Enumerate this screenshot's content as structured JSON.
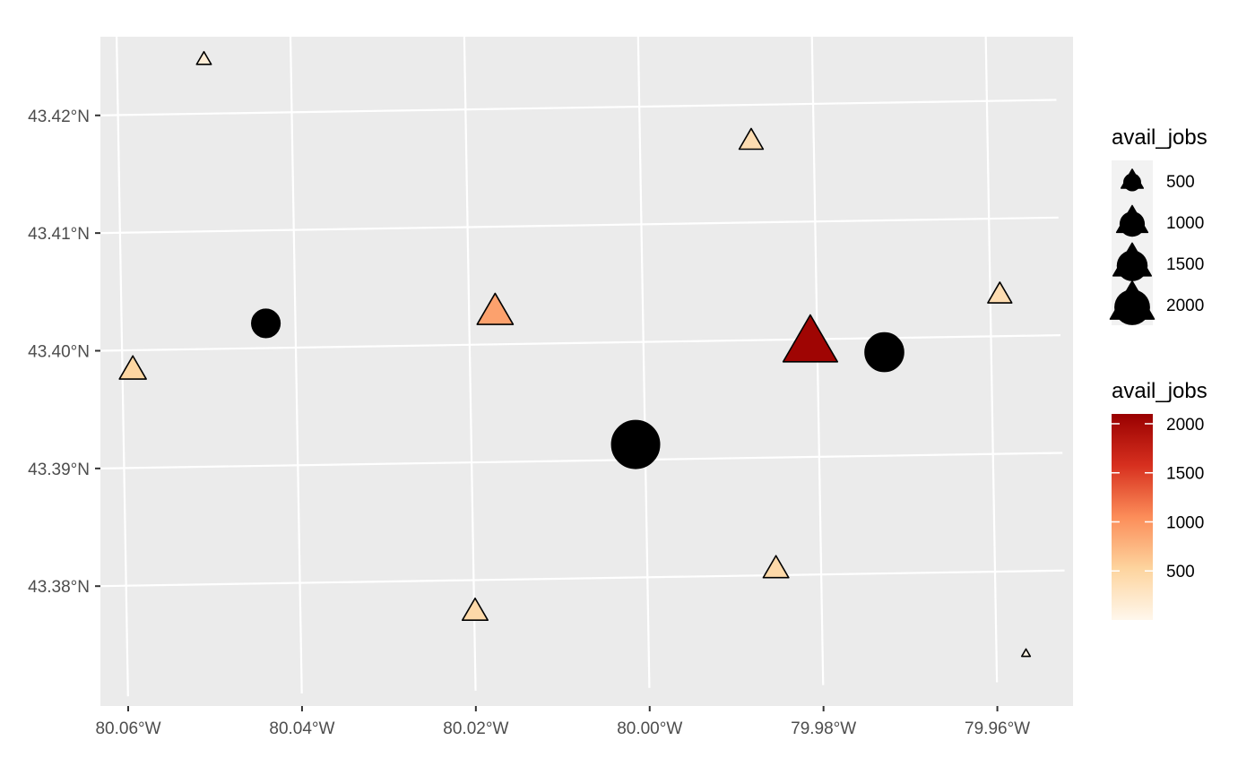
{
  "chart_data": {
    "type": "scatter",
    "title": "",
    "xlabel": "",
    "ylabel": "",
    "grid": true,
    "panel_background": "#ebebeb",
    "x_ticks": [
      {
        "value": -80.06,
        "label": "80.06°W"
      },
      {
        "value": -80.04,
        "label": "80.04°W"
      },
      {
        "value": -80.02,
        "label": "80.02°W"
      },
      {
        "value": -80.0,
        "label": "80.00°W"
      },
      {
        "value": -79.98,
        "label": "79.98°W"
      },
      {
        "value": -79.96,
        "label": "79.96°W"
      }
    ],
    "y_ticks": [
      {
        "value": 43.38,
        "label": "43.38°N"
      },
      {
        "value": 43.39,
        "label": "43.39°N"
      },
      {
        "value": 43.4,
        "label": "43.40°N"
      },
      {
        "value": 43.41,
        "label": "43.41°N"
      },
      {
        "value": 43.42,
        "label": "43.42°N"
      }
    ],
    "xlim": [
      -80.064,
      -79.952
    ],
    "ylim": [
      43.3706,
      43.4275
    ],
    "series": [
      {
        "shape": "circle",
        "fill": "#000000",
        "points": [
          {
            "lon": -80.0434,
            "lat": 43.4021,
            "avail_jobs": 700
          },
          {
            "lon": -80.0011,
            "lat": 43.3913,
            "avail_jobs": 2000
          },
          {
            "lon": -79.9723,
            "lat": 43.3988,
            "avail_jobs": 1300
          }
        ]
      },
      {
        "shape": "triangle",
        "colored_by": "avail_jobs",
        "points": [
          {
            "lon": -80.05,
            "lat": 43.4246,
            "avail_jobs": 150
          },
          {
            "lon": -80.0588,
            "lat": 43.3983,
            "avail_jobs": 500
          },
          {
            "lon": -80.017,
            "lat": 43.4027,
            "avail_jobs": 900
          },
          {
            "lon": -80.0199,
            "lat": 43.3773,
            "avail_jobs": 450
          },
          {
            "lon": -79.9872,
            "lat": 43.4169,
            "avail_jobs": 400
          },
          {
            "lon": -79.9808,
            "lat": 43.3996,
            "avail_jobs": 2050
          },
          {
            "lon": -79.9852,
            "lat": 43.3805,
            "avail_jobs": 450
          },
          {
            "lon": -79.9589,
            "lat": 43.4035,
            "avail_jobs": 400
          },
          {
            "lon": -79.9566,
            "lat": 43.373,
            "avail_jobs": 50
          }
        ]
      }
    ],
    "legends": [
      {
        "type": "size",
        "title": "avail_jobs",
        "placement": "right",
        "entries": [
          {
            "value": 500,
            "label": "500"
          },
          {
            "value": 1000,
            "label": "1000"
          },
          {
            "value": 1500,
            "label": "1500"
          },
          {
            "value": 2000,
            "label": "2000"
          }
        ]
      },
      {
        "type": "colorbar",
        "title": "avail_jobs",
        "placement": "right",
        "range": [
          0,
          2100
        ],
        "colors": [
          "#fff7ec",
          "#fdd49e",
          "#fc8d59",
          "#d7301f",
          "#990000"
        ],
        "ticks": [
          {
            "value": 500,
            "label": "500"
          },
          {
            "value": 1000,
            "label": "1000"
          },
          {
            "value": 1500,
            "label": "1500"
          },
          {
            "value": 2000,
            "label": "2000"
          }
        ]
      }
    ]
  }
}
